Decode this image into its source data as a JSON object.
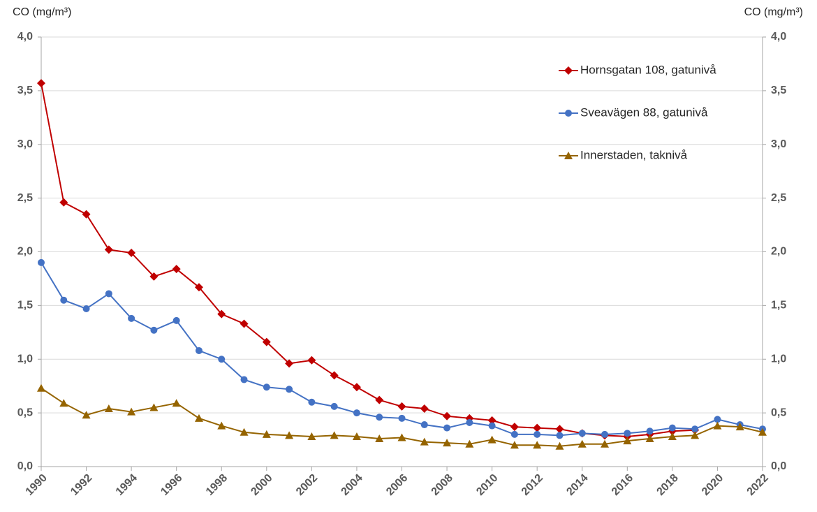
{
  "chart_data": {
    "type": "line",
    "y_label": "CO (mg/m³)",
    "y2_label": "CO (mg/m³)",
    "x": [
      1990,
      1991,
      1992,
      1993,
      1994,
      1995,
      1996,
      1997,
      1998,
      1999,
      2000,
      2001,
      2002,
      2003,
      2004,
      2005,
      2006,
      2007,
      2008,
      2009,
      2010,
      2011,
      2012,
      2013,
      2014,
      2015,
      2016,
      2017,
      2018,
      2019,
      2020,
      2021,
      2022
    ],
    "xlim": [
      1990,
      2022
    ],
    "xticks": [
      1990,
      1992,
      1994,
      1996,
      1998,
      2000,
      2002,
      2004,
      2006,
      2008,
      2010,
      2012,
      2014,
      2016,
      2018,
      2020,
      2022
    ],
    "ylim": [
      0,
      4
    ],
    "yticks": [
      {
        "value": 0,
        "label": "0,0"
      },
      {
        "value": 0.5,
        "label": "0,5"
      },
      {
        "value": 1,
        "label": "1,0"
      },
      {
        "value": 1.5,
        "label": "1,5"
      },
      {
        "value": 2,
        "label": "2,0"
      },
      {
        "value": 2.5,
        "label": "2,5"
      },
      {
        "value": 3,
        "label": "3,0"
      },
      {
        "value": 3.5,
        "label": "3,5"
      },
      {
        "value": 4,
        "label": "4,0"
      }
    ],
    "y2lim": [
      0,
      4
    ],
    "y2ticks": [
      {
        "value": 0,
        "label": "0,0"
      },
      {
        "value": 0.5,
        "label": "0,5"
      },
      {
        "value": 1,
        "label": "1,0"
      },
      {
        "value": 1.5,
        "label": "1,5"
      },
      {
        "value": 2,
        "label": "2,0"
      },
      {
        "value": 2.5,
        "label": "2,5"
      },
      {
        "value": 3,
        "label": "3,0"
      },
      {
        "value": 3.5,
        "label": "3,5"
      },
      {
        "value": 4,
        "label": "4,0"
      }
    ],
    "grid": true,
    "legend": "upper right",
    "series": [
      {
        "name": "Hornsgatan 108, gatunivå",
        "color": "#c00000",
        "marker": "diamond",
        "values": [
          3.57,
          2.46,
          2.35,
          2.02,
          1.99,
          1.77,
          1.84,
          1.67,
          1.42,
          1.33,
          1.16,
          0.96,
          0.99,
          0.85,
          0.74,
          0.62,
          0.56,
          0.54,
          0.47,
          0.45,
          0.43,
          0.37,
          0.36,
          0.35,
          0.31,
          0.29,
          0.28,
          0.3,
          0.33,
          0.34,
          null,
          null,
          null
        ]
      },
      {
        "name": "Sveavägen 88, gatunivå",
        "color": "#4472c4",
        "marker": "circle",
        "values": [
          1.9,
          1.55,
          1.47,
          1.61,
          1.38,
          1.27,
          1.36,
          1.08,
          1.0,
          0.81,
          0.74,
          0.72,
          0.6,
          0.56,
          0.5,
          0.46,
          0.45,
          0.39,
          0.36,
          0.41,
          0.38,
          0.3,
          0.3,
          0.29,
          0.31,
          0.3,
          0.31,
          0.33,
          0.36,
          0.35,
          0.44,
          0.39,
          0.35
        ]
      },
      {
        "name": "Innerstaden, taknivå",
        "color": "#956400",
        "marker": "triangle",
        "values": [
          0.73,
          0.59,
          0.48,
          0.54,
          0.51,
          0.55,
          0.59,
          0.45,
          0.38,
          0.32,
          0.3,
          0.29,
          0.28,
          0.29,
          0.28,
          0.26,
          0.27,
          0.23,
          0.22,
          0.21,
          0.25,
          0.2,
          0.2,
          0.19,
          0.21,
          0.21,
          0.24,
          0.26,
          0.28,
          0.29,
          0.38,
          0.37,
          0.32
        ]
      }
    ]
  }
}
